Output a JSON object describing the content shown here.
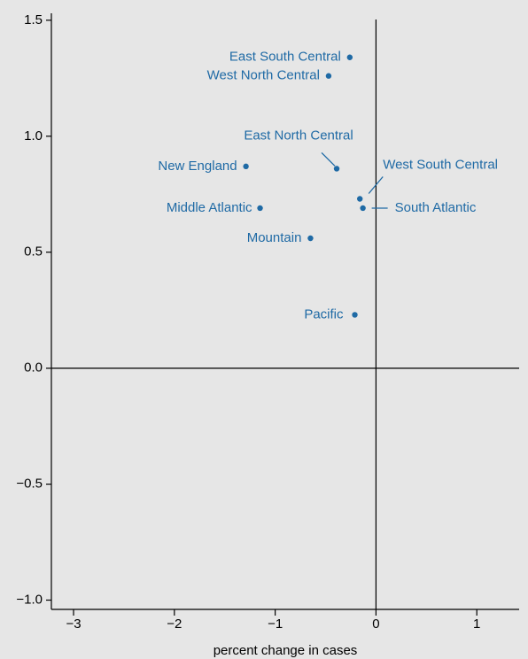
{
  "chart_data": {
    "type": "scatter",
    "x_label": "percent change in cases",
    "color": "#1f6aa5",
    "categories": [
      "East South Central",
      "West North Central",
      "East North Central",
      "New England",
      "West South Central",
      "South Atlantic",
      "Middle Atlantic",
      "Mountain",
      "Pacific"
    ],
    "x": [
      -0.26,
      -0.47,
      -0.39,
      -1.29,
      -0.16,
      -0.13,
      -1.15,
      -0.65,
      -0.21
    ],
    "values": [
      1.34,
      1.26,
      0.86,
      0.87,
      0.73,
      0.69,
      0.69,
      0.56,
      0.23
    ],
    "xlim": [
      -3.22,
      1.42
    ],
    "ylim": [
      -1.04,
      1.53
    ],
    "xticks": [
      {
        "value": -3,
        "label": "−3"
      },
      {
        "value": -2,
        "label": "−2"
      },
      {
        "value": -1,
        "label": "−1"
      },
      0,
      1
    ],
    "yticks": [
      {
        "value": -1,
        "label": "−1.0"
      },
      {
        "value": -0.5,
        "label": "−0.5"
      },
      {
        "value": 0,
        "label": "0.0"
      },
      0.5,
      {
        "value": 1,
        "label": "1.0"
      },
      {
        "value": 1.5,
        "label": "1.5"
      }
    ]
  }
}
